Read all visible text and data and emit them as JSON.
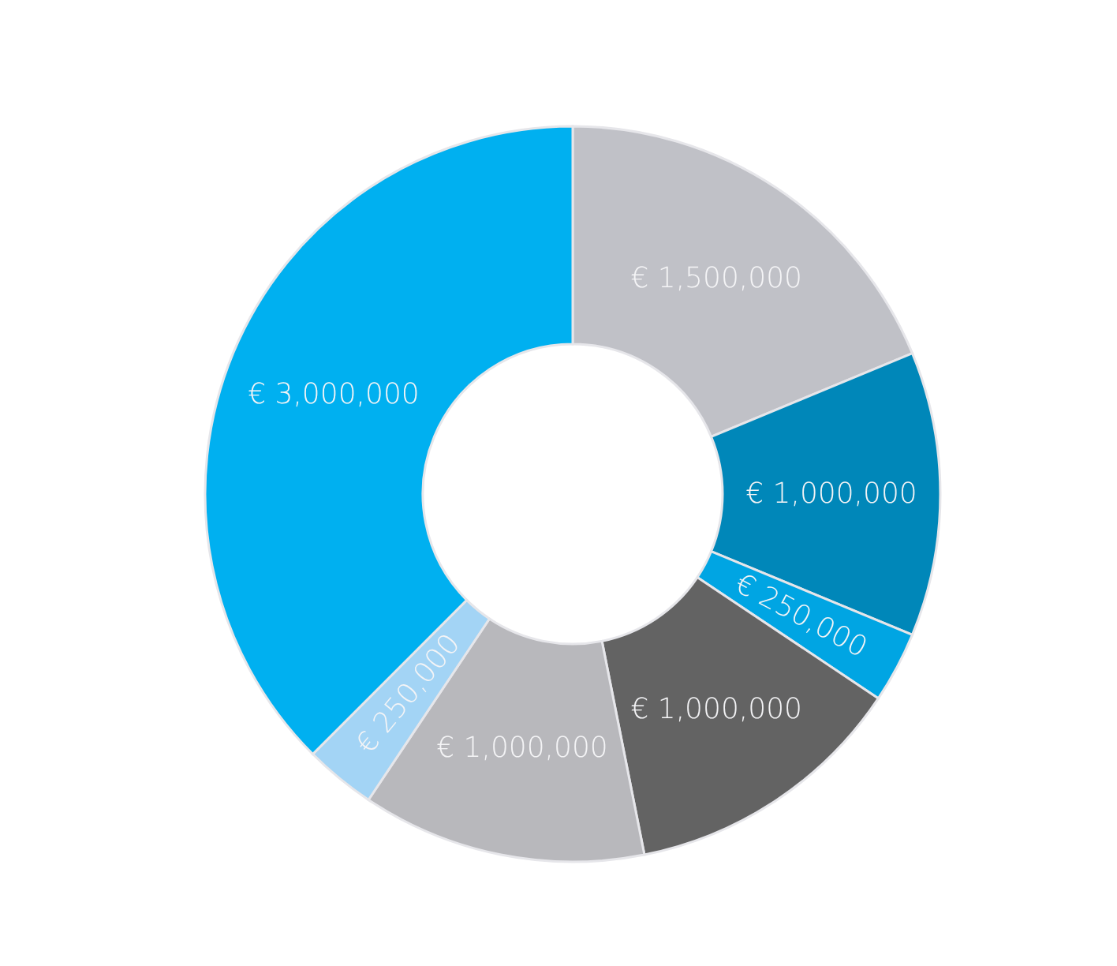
{
  "chart_data": {
    "type": "donut",
    "categories": [
      null,
      null,
      null,
      null,
      null,
      null,
      null
    ],
    "values": [
      1500000,
      1000000,
      250000,
      1000000,
      1000000,
      250000,
      3000000
    ],
    "colors": [
      "#c0c1c7",
      "#0087b9",
      "#00a5e3",
      "#636363",
      "#b8b8bc",
      "#a3d4f5",
      "#00b0f0"
    ],
    "value_labels": [
      "€ 1,500,000",
      "€ 1,000,000",
      "€ 250,000",
      "€ 1,000,000",
      "€ 1,000,000",
      "€ 250,000",
      "€ 3,000,000"
    ],
    "legend": false
  }
}
